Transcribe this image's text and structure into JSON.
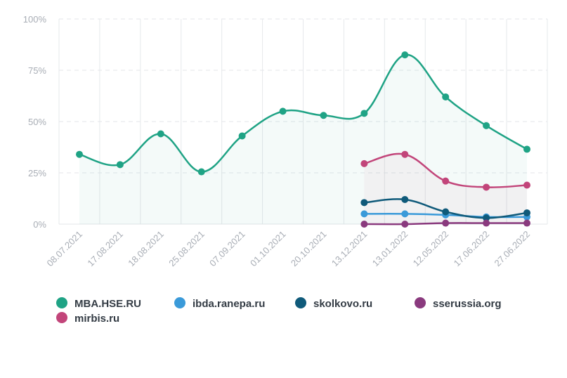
{
  "chart_data": {
    "type": "line",
    "title": "",
    "xlabel": "",
    "ylabel": "",
    "ylim": [
      0,
      100
    ],
    "yticks": [
      "0%",
      "25%",
      "50%",
      "75%",
      "100%"
    ],
    "ytick_values": [
      0,
      25,
      50,
      75,
      100
    ],
    "categories": [
      "08.07.2021",
      "17.08.2021",
      "18.08.2021",
      "25.08.2021",
      "07.09.2021",
      "01.10.2021",
      "20.10.2021",
      "13.12.2021",
      "13.01.2022",
      "12.05.2022",
      "17.06.2022",
      "27.06.2022"
    ],
    "series": [
      {
        "name": "MBA.HSE.RU",
        "color": "#1fa385",
        "fill": true,
        "values": [
          34,
          29,
          44,
          25.5,
          43,
          55,
          53,
          54,
          82.5,
          62,
          48,
          36.5
        ]
      },
      {
        "name": "ibda.ranepa.ru",
        "color": "#3a9ad9",
        "fill": false,
        "values": [
          null,
          null,
          null,
          null,
          null,
          null,
          null,
          5,
          5,
          4.5,
          3.5,
          3.5
        ]
      },
      {
        "name": "skolkovo.ru",
        "color": "#0f5a7a",
        "fill": false,
        "values": [
          null,
          null,
          null,
          null,
          null,
          null,
          null,
          10.5,
          12,
          6,
          3,
          5.5
        ]
      },
      {
        "name": "sserussia.org",
        "color": "#8a3a7e",
        "fill": false,
        "values": [
          null,
          null,
          null,
          null,
          null,
          null,
          null,
          0,
          0,
          0.5,
          0.5,
          0.5
        ]
      },
      {
        "name": "mirbis.ru",
        "color": "#c2457a",
        "fill": true,
        "values": [
          null,
          null,
          null,
          null,
          null,
          null,
          null,
          29.5,
          34,
          21,
          18,
          19
        ]
      }
    ],
    "legend_position": "bottom",
    "grid": true
  }
}
